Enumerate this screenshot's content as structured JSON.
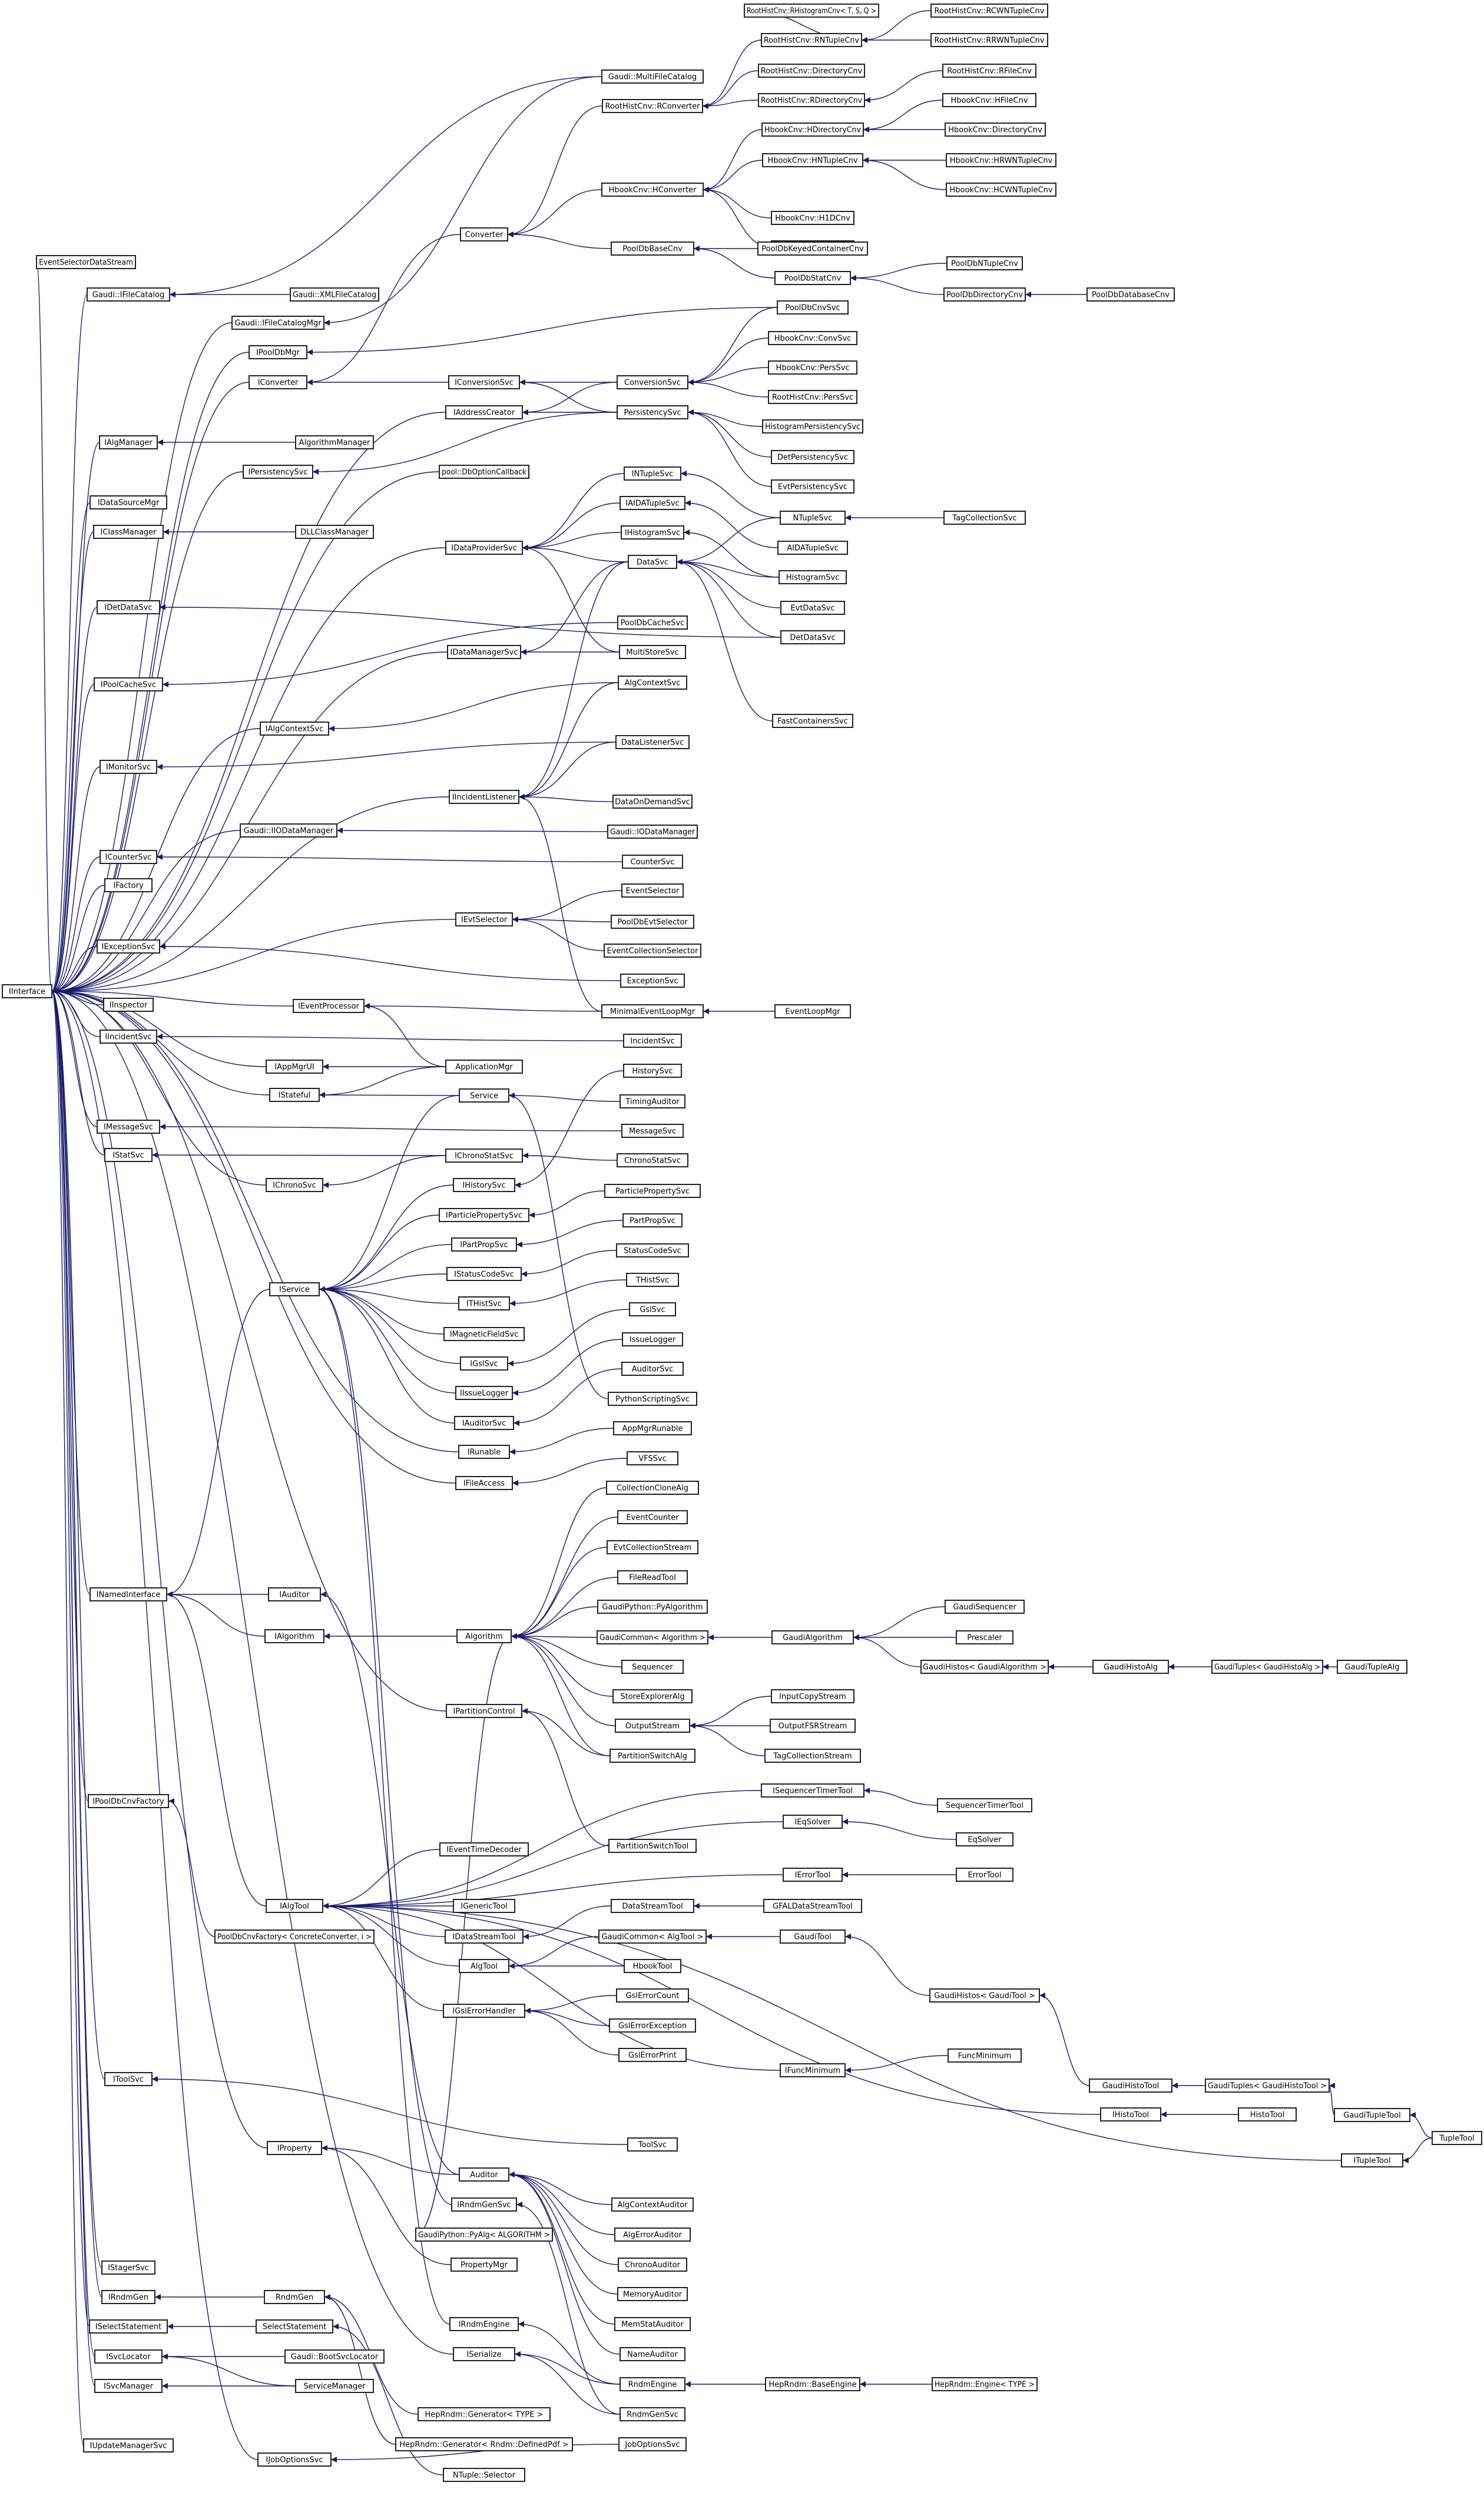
{
  "colors": {
    "edge": "#1a1a6e",
    "node_border": "#222222",
    "node_fill": "#ffffff",
    "background": "#ffffff"
  },
  "nodes": {
    "n0": "RootHistCnv::RHistogramCnv< T, S, Q >",
    "n1": "RootHistCnv::RCWNTupleCnv",
    "n2": "RootHistCnv::RNTupleCnv",
    "n3": "RootHistCnv::RRWNTupleCnv",
    "n4": "Gaudi::MultiFileCatalog",
    "n5": "RootHistCnv::RConverter",
    "n6": "RootHistCnv::DirectoryCnv",
    "n7": "RootHistCnv::RFileCnv",
    "n8": "RootHistCnv::RDirectoryCnv",
    "n9": "HbookCnv::HFileCnv",
    "n10": "HbookCnv::HDirectoryCnv",
    "n11": "HbookCnv::DirectoryCnv",
    "n12": "HbookCnv::HNTupleCnv",
    "n13": "HbookCnv::HRWNTupleCnv",
    "n14": "HbookCnv::HConverter",
    "n15": "HbookCnv::HCWNTupleCnv",
    "n16": "HbookCnv::H1DCnv",
    "n17": "HbookCnv::H2DCnv",
    "n18": "Converter",
    "n19": "PoolDbBaseCnv",
    "n20": "PoolDbKeyedContainerCnv",
    "n21": "EventSelectorDataStream",
    "n22": "PoolDbNTupleCnv",
    "n23": "PoolDbStatCnv",
    "n24": "Gaudi::IFileCatalog",
    "n25": "Gaudi::XMLFileCatalog",
    "n26": "PoolDbDirectoryCnv",
    "n27": "PoolDbDatabaseCnv",
    "n28": "PoolDbCnvSvc",
    "n29": "Gaudi::IFileCatalogMgr",
    "n30": "IPoolDbMgr",
    "n31": "HbookCnv::ConvSvc",
    "n32": "IConverter",
    "n33": "IConversionSvc",
    "n34": "ConversionSvc",
    "n35": "HbookCnv::PersSvc",
    "n36": "RootHistCnv::PersSvc",
    "n37": "IAddressCreator",
    "n38": "PersistencySvc",
    "n39": "IAlgManager",
    "n40": "AlgorithmManager",
    "n41": "HistogramPersistencySvc",
    "n42": "IPersistencySvc",
    "n43": "DetPersistencySvc",
    "n44": "pool::DbOptionCallback",
    "n45": "EvtPersistencySvc",
    "n46": "INTupleSvc",
    "n47": "IDataSourceMgr",
    "n48": "NTupleSvc",
    "n49": "TagCollectionSvc",
    "n50": "IAIDATupleSvc",
    "n51": "IClassManager",
    "n52": "DLLClassManager",
    "n53": "IHistogramSvc",
    "n54": "AIDATupleSvc",
    "n55": "IDataProviderSvc",
    "n56": "DataSvc",
    "n57": "HistogramSvc",
    "n58": "IDetDataSvc",
    "n59": "EvtDataSvc",
    "n60": "PoolDbCacheSvc",
    "n61": "DetDataSvc",
    "n62": "IDataManagerSvc",
    "n63": "MultiStoreSvc",
    "n64": "IPoolCacheSvc",
    "n65": "AlgContextSvc",
    "n66": "IAlgContextSvc",
    "n67": "FastContainersSvc",
    "n68": "IMonitorSvc",
    "n69": "DataListenerSvc",
    "n70": "IIncidentListener",
    "n71": "DataOnDemandSvc",
    "n72": "Gaudi::IIODataManager",
    "n73": "Gaudi::IODataManager",
    "n74": "ICounterSvc",
    "n75": "CounterSvc",
    "n76": "IFactory",
    "n77": "EventSelector",
    "n78": "IEvtSelector",
    "n79": "PoolDbEvtSelector",
    "n80": "IExceptionSvc",
    "n81": "EventCollectionSelector",
    "n82": "ExceptionSvc",
    "n83": "IInterface",
    "n84": "IInspector",
    "n85": "IEventProcessor",
    "n86": "MinimalEventLoopMgr",
    "n87": "EventLoopMgr",
    "n88": "IIncidentSvc",
    "n89": "IncidentSvc",
    "n90": "IAppMgrUI",
    "n91": "ApplicationMgr",
    "n92": "HistorySvc",
    "n93": "IStateful",
    "n94": "Service",
    "n95": "TimingAuditor",
    "n96": "IMessageSvc",
    "n97": "MessageSvc",
    "n98": "IStatSvc",
    "n99": "IChronoStatSvc",
    "n100": "ChronoStatSvc",
    "n101": "IChronoSvc",
    "n102": "IHistorySvc",
    "n103": "ParticlePropertySvc",
    "n104": "IParticlePropertySvc",
    "n105": "PartPropSvc",
    "n106": "IPartPropSvc",
    "n107": "StatusCodeSvc",
    "n108": "IStatusCodeSvc",
    "n109": "THistSvc",
    "n110": "IService",
    "n111": "ITHistSvc",
    "n112": "GslSvc",
    "n113": "IMagneticFieldSvc",
    "n114": "IssueLogger",
    "n115": "IGslSvc",
    "n116": "AuditorSvc",
    "n117": "IIssueLogger",
    "n118": "PythonScriptingSvc",
    "n119": "IAuditorSvc",
    "n120": "AppMgrRunable",
    "n121": "IRunable",
    "n122": "VFSSvc",
    "n123": "IFileAccess",
    "n124": "CollectionCloneAlg",
    "n125": "EventCounter",
    "n126": "EvtCollectionStream",
    "n127": "FileReadTool",
    "n128": "INamedInterface",
    "n129": "IAuditor",
    "n130": "GaudiSequencer",
    "n131": "GaudiPython::PyAlgorithm",
    "n132": "Prescaler",
    "n133": "IAlgorithm",
    "n134": "Algorithm",
    "n135": "GaudiCommon< Algorithm >",
    "n136": "GaudiAlgorithm",
    "n137": "GaudiHistos< GaudiAlgorithm >",
    "n138": "GaudiHistoAlg",
    "n139": "GaudiTuples< GaudiHistoAlg >",
    "n140": "GaudiTupleAlg",
    "n141": "Sequencer",
    "n142": "StoreExplorerAlg",
    "n143": "InputCopyStream",
    "n144": "IPartitionControl",
    "n145": "OutputStream",
    "n146": "OutputFSRStream",
    "n147": "PartitionSwitchAlg",
    "n148": "TagCollectionStream",
    "n149": "IPoolDbCnvFactory",
    "n150": "ISequencerTimerTool",
    "n151": "SequencerTimerTool",
    "n152": "IEqSolver",
    "n153": "IEventTimeDecoder",
    "n154": "EqSolver",
    "n155": "PartitionSwitchTool",
    "n156": "IErrorTool",
    "n157": "ErrorTool",
    "n158": "IAlgTool",
    "n159": "IGenericTool",
    "n160": "DataStreamTool",
    "n161": "GFALDataStreamTool",
    "n162": "PoolDbCnvFactory< ConcreteConverter, i >",
    "n163": "IDataStreamTool",
    "n164": "GaudiCommon< AlgTool >",
    "n165": "GaudiTool",
    "n166": "AlgTool",
    "n167": "HbookTool",
    "n168": "GslErrorCount",
    "n169": "GaudiHistos< GaudiTool >",
    "n170": "IGslErrorHandler",
    "n171": "GslErrorException",
    "n172": "GslErrorPrint",
    "n173": "IFuncMinimum",
    "n174": "FuncMinimum",
    "n175": "GaudiHistoTool",
    "n176": "GaudiTuples< GaudiHistoTool >",
    "n177": "IToolSvc",
    "n178": "IHistoTool",
    "n179": "HistoTool",
    "n180": "GaudiTupleTool",
    "n181": "TupleTool",
    "n182": "ToolSvc",
    "n183": "IProperty",
    "n184": "ITupleTool",
    "n185": "Auditor",
    "n186": "AlgContextAuditor",
    "n187": "IRndmGenSvc",
    "n188": "AlgErrorAuditor",
    "n189": "GaudiPython::PyAlg< ALGORITHM >",
    "n190": "ChronoAuditor",
    "n191": "PropertyMgr",
    "n192": "IStagerSvc",
    "n193": "MemoryAuditor",
    "n194": "IRndmGen",
    "n195": "RndmGen",
    "n196": "MemStatAuditor",
    "n197": "ISelectStatement",
    "n198": "SelectStatement",
    "n199": "IRndmEngine",
    "n200": "NameAuditor",
    "n201": "ISvcLocator",
    "n202": "Gaudi::BootSvcLocator",
    "n203": "ISerialize",
    "n204": "ISvcManager",
    "n205": "ServiceManager",
    "n206": "RndmEngine",
    "n207": "HepRndm::BaseEngine",
    "n208": "HepRndm::Engine< TYPE >",
    "n209": "HepRndm::Generator< TYPE >",
    "n210": "RndmGenSvc",
    "n211": "IUpdateManagerSvc",
    "n212": "HepRndm::Generator< Rndm::DefinedPdf >",
    "n213": "JobOptionsSvc",
    "n214": "IJobOptionsSvc",
    "n215": "NTuple::Selector"
  },
  "edges": [
    [
      "n0",
      "n2"
    ],
    [
      "n1",
      "n2"
    ],
    [
      "n3",
      "n2"
    ],
    [
      "n2",
      "n5"
    ],
    [
      "n6",
      "n5"
    ],
    [
      "n7",
      "n8"
    ],
    [
      "n8",
      "n5"
    ],
    [
      "n4",
      "n24"
    ],
    [
      "n4",
      "n29"
    ],
    [
      "n5",
      "n18"
    ],
    [
      "n9",
      "n10"
    ],
    [
      "n11",
      "n10"
    ],
    [
      "n10",
      "n14"
    ],
    [
      "n13",
      "n12"
    ],
    [
      "n15",
      "n12"
    ],
    [
      "n12",
      "n14"
    ],
    [
      "n16",
      "n14"
    ],
    [
      "n17",
      "n14"
    ],
    [
      "n14",
      "n18"
    ],
    [
      "n18",
      "n32"
    ],
    [
      "n19",
      "n18"
    ],
    [
      "n20",
      "n19"
    ],
    [
      "n23",
      "n19"
    ],
    [
      "n22",
      "n23"
    ],
    [
      "n26",
      "n23"
    ],
    [
      "n27",
      "n26"
    ],
    [
      "n21",
      "n83"
    ],
    [
      "n24",
      "n83"
    ],
    [
      "n25",
      "n24"
    ],
    [
      "n29",
      "n83"
    ],
    [
      "n28",
      "n30"
    ],
    [
      "n28",
      "n34"
    ],
    [
      "n30",
      "n83"
    ],
    [
      "n32",
      "n83"
    ],
    [
      "n33",
      "n32"
    ],
    [
      "n34",
      "n33"
    ],
    [
      "n34",
      "n37"
    ],
    [
      "n31",
      "n34"
    ],
    [
      "n35",
      "n34"
    ],
    [
      "n36",
      "n34"
    ],
    [
      "n37",
      "n83"
    ],
    [
      "n38",
      "n33"
    ],
    [
      "n38",
      "n37"
    ],
    [
      "n38",
      "n42"
    ],
    [
      "n39",
      "n83"
    ],
    [
      "n40",
      "n39"
    ],
    [
      "n41",
      "n38"
    ],
    [
      "n43",
      "n38"
    ],
    [
      "n45",
      "n38"
    ],
    [
      "n42",
      "n83"
    ],
    [
      "n44",
      "n83"
    ],
    [
      "n47",
      "n83"
    ],
    [
      "n46",
      "n55"
    ],
    [
      "n48",
      "n46"
    ],
    [
      "n48",
      "n56"
    ],
    [
      "n49",
      "n48"
    ],
    [
      "n50",
      "n55"
    ],
    [
      "n54",
      "n50"
    ],
    [
      "n51",
      "n83"
    ],
    [
      "n52",
      "n51"
    ],
    [
      "n53",
      "n55"
    ],
    [
      "n57",
      "n53"
    ],
    [
      "n57",
      "n56"
    ],
    [
      "n55",
      "n83"
    ],
    [
      "n56",
      "n55"
    ],
    [
      "n56",
      "n62"
    ],
    [
      "n56",
      "n70"
    ],
    [
      "n59",
      "n56"
    ],
    [
      "n61",
      "n56"
    ],
    [
      "n61",
      "n58"
    ],
    [
      "n67",
      "n56"
    ],
    [
      "n58",
      "n83"
    ],
    [
      "n60",
      "n64"
    ],
    [
      "n62",
      "n83"
    ],
    [
      "n63",
      "n55"
    ],
    [
      "n63",
      "n62"
    ],
    [
      "n64",
      "n83"
    ],
    [
      "n65",
      "n66"
    ],
    [
      "n65",
      "n70"
    ],
    [
      "n66",
      "n83"
    ],
    [
      "n68",
      "n83"
    ],
    [
      "n69",
      "n68"
    ],
    [
      "n69",
      "n70"
    ],
    [
      "n70",
      "n83"
    ],
    [
      "n71",
      "n70"
    ],
    [
      "n72",
      "n83"
    ],
    [
      "n73",
      "n72"
    ],
    [
      "n74",
      "n83"
    ],
    [
      "n75",
      "n74"
    ],
    [
      "n76",
      "n83"
    ],
    [
      "n77",
      "n78"
    ],
    [
      "n79",
      "n78"
    ],
    [
      "n81",
      "n78"
    ],
    [
      "n78",
      "n83"
    ],
    [
      "n80",
      "n83"
    ],
    [
      "n82",
      "n80"
    ],
    [
      "n84",
      "n83"
    ],
    [
      "n85",
      "n83"
    ],
    [
      "n86",
      "n85"
    ],
    [
      "n86",
      "n70"
    ],
    [
      "n87",
      "n86"
    ],
    [
      "n88",
      "n83"
    ],
    [
      "n89",
      "n88"
    ],
    [
      "n90",
      "n83"
    ],
    [
      "n91",
      "n90"
    ],
    [
      "n91",
      "n85"
    ],
    [
      "n91",
      "n93"
    ],
    [
      "n92",
      "n102"
    ],
    [
      "n93",
      "n83"
    ],
    [
      "n94",
      "n110"
    ],
    [
      "n94",
      "n93"
    ],
    [
      "n95",
      "n94"
    ],
    [
      "n96",
      "n83"
    ],
    [
      "n97",
      "n96"
    ],
    [
      "n98",
      "n83"
    ],
    [
      "n99",
      "n98"
    ],
    [
      "n99",
      "n101"
    ],
    [
      "n100",
      "n99"
    ],
    [
      "n101",
      "n83"
    ],
    [
      "n102",
      "n110"
    ],
    [
      "n103",
      "n104"
    ],
    [
      "n104",
      "n110"
    ],
    [
      "n105",
      "n106"
    ],
    [
      "n106",
      "n110"
    ],
    [
      "n107",
      "n108"
    ],
    [
      "n108",
      "n110"
    ],
    [
      "n109",
      "n111"
    ],
    [
      "n111",
      "n110"
    ],
    [
      "n110",
      "n128"
    ],
    [
      "n112",
      "n115"
    ],
    [
      "n113",
      "n110"
    ],
    [
      "n114",
      "n117"
    ],
    [
      "n115",
      "n110"
    ],
    [
      "n116",
      "n119"
    ],
    [
      "n117",
      "n110"
    ],
    [
      "n118",
      "n94"
    ],
    [
      "n119",
      "n110"
    ],
    [
      "n120",
      "n121"
    ],
    [
      "n121",
      "n83"
    ],
    [
      "n122",
      "n123"
    ],
    [
      "n123",
      "n83"
    ],
    [
      "n124",
      "n134"
    ],
    [
      "n125",
      "n134"
    ],
    [
      "n126",
      "n134"
    ],
    [
      "n127",
      "n134"
    ],
    [
      "n128",
      "n83"
    ],
    [
      "n129",
      "n128"
    ],
    [
      "n130",
      "n136"
    ],
    [
      "n131",
      "n134"
    ],
    [
      "n132",
      "n136"
    ],
    [
      "n133",
      "n128"
    ],
    [
      "n134",
      "n133"
    ],
    [
      "n135",
      "n134"
    ],
    [
      "n136",
      "n135"
    ],
    [
      "n137",
      "n136"
    ],
    [
      "n138",
      "n137"
    ],
    [
      "n139",
      "n138"
    ],
    [
      "n140",
      "n139"
    ],
    [
      "n141",
      "n134"
    ],
    [
      "n142",
      "n134"
    ],
    [
      "n143",
      "n145"
    ],
    [
      "n144",
      "n83"
    ],
    [
      "n145",
      "n134"
    ],
    [
      "n146",
      "n145"
    ],
    [
      "n147",
      "n134"
    ],
    [
      "n147",
      "n144"
    ],
    [
      "n148",
      "n145"
    ],
    [
      "n149",
      "n83"
    ],
    [
      "n150",
      "n158"
    ],
    [
      "n151",
      "n150"
    ],
    [
      "n152",
      "n158"
    ],
    [
      "n153",
      "n158"
    ],
    [
      "n154",
      "n152"
    ],
    [
      "n155",
      "n144"
    ],
    [
      "n156",
      "n158"
    ],
    [
      "n157",
      "n156"
    ],
    [
      "n158",
      "n128"
    ],
    [
      "n159",
      "n158"
    ],
    [
      "n160",
      "n163"
    ],
    [
      "n161",
      "n160"
    ],
    [
      "n162",
      "n149"
    ],
    [
      "n163",
      "n158"
    ],
    [
      "n164",
      "n166"
    ],
    [
      "n165",
      "n164"
    ],
    [
      "n166",
      "n158"
    ],
    [
      "n167",
      "n166"
    ],
    [
      "n168",
      "n170"
    ],
    [
      "n169",
      "n165"
    ],
    [
      "n170",
      "n158"
    ],
    [
      "n171",
      "n170"
    ],
    [
      "n172",
      "n170"
    ],
    [
      "n173",
      "n158"
    ],
    [
      "n174",
      "n173"
    ],
    [
      "n175",
      "n169"
    ],
    [
      "n176",
      "n175"
    ],
    [
      "n177",
      "n83"
    ],
    [
      "n178",
      "n158"
    ],
    [
      "n179",
      "n178"
    ],
    [
      "n180",
      "n176"
    ],
    [
      "n181",
      "n180"
    ],
    [
      "n181",
      "n184"
    ],
    [
      "n182",
      "n177"
    ],
    [
      "n183",
      "n83"
    ],
    [
      "n184",
      "n158"
    ],
    [
      "n185",
      "n129"
    ],
    [
      "n185",
      "n183"
    ],
    [
      "n186",
      "n185"
    ],
    [
      "n187",
      "n110"
    ],
    [
      "n188",
      "n185"
    ],
    [
      "n189",
      "n134"
    ],
    [
      "n190",
      "n185"
    ],
    [
      "n191",
      "n183"
    ],
    [
      "n192",
      "n83"
    ],
    [
      "n193",
      "n185"
    ],
    [
      "n194",
      "n83"
    ],
    [
      "n195",
      "n194"
    ],
    [
      "n196",
      "n185"
    ],
    [
      "n197",
      "n83"
    ],
    [
      "n198",
      "n197"
    ],
    [
      "n199",
      "n110"
    ],
    [
      "n200",
      "n185"
    ],
    [
      "n201",
      "n83"
    ],
    [
      "n202",
      "n201"
    ],
    [
      "n203",
      "n83"
    ],
    [
      "n204",
      "n83"
    ],
    [
      "n205",
      "n204"
    ],
    [
      "n205",
      "n201"
    ],
    [
      "n206",
      "n199"
    ],
    [
      "n206",
      "n203"
    ],
    [
      "n207",
      "n206"
    ],
    [
      "n208",
      "n207"
    ],
    [
      "n209",
      "n195"
    ],
    [
      "n210",
      "n187"
    ],
    [
      "n210",
      "n203"
    ],
    [
      "n211",
      "n83"
    ],
    [
      "n212",
      "n195"
    ],
    [
      "n213",
      "n214"
    ],
    [
      "n214",
      "n83"
    ],
    [
      "n215",
      "n198"
    ]
  ]
}
